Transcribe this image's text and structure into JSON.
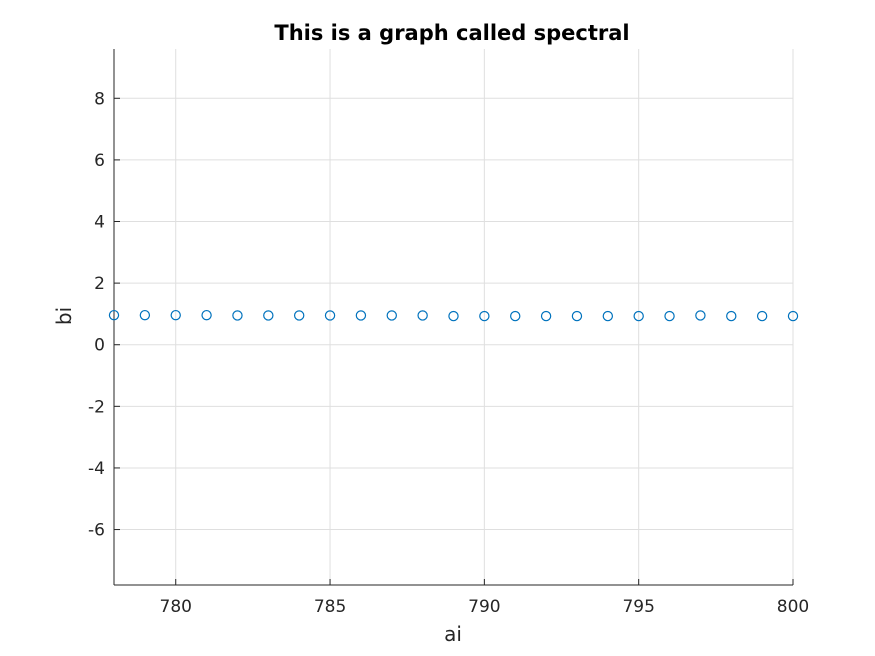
{
  "chart_data": {
    "type": "scatter",
    "title": "This is a graph called spectral",
    "xlabel": "ai",
    "ylabel": "bi",
    "xlim": [
      778,
      800
    ],
    "ylim": [
      -7.8,
      9.6
    ],
    "xticks": [
      780,
      785,
      790,
      795,
      800
    ],
    "yticks": [
      -6,
      -4,
      -2,
      0,
      2,
      4,
      6,
      8
    ],
    "grid": true,
    "marker": "open-circle",
    "color": "#0072BD",
    "series": [
      {
        "x": [
          778,
          779,
          780,
          781,
          782,
          783,
          784,
          785,
          786,
          787,
          788,
          789,
          790,
          791,
          792,
          793,
          794,
          795,
          796,
          797,
          798,
          799,
          800
        ],
        "y": [
          0.96,
          0.96,
          0.96,
          0.96,
          0.95,
          0.95,
          0.95,
          0.95,
          0.95,
          0.95,
          0.95,
          0.93,
          0.93,
          0.93,
          0.93,
          0.93,
          0.93,
          0.93,
          0.93,
          0.95,
          0.93,
          0.93,
          0.93
        ]
      }
    ]
  }
}
